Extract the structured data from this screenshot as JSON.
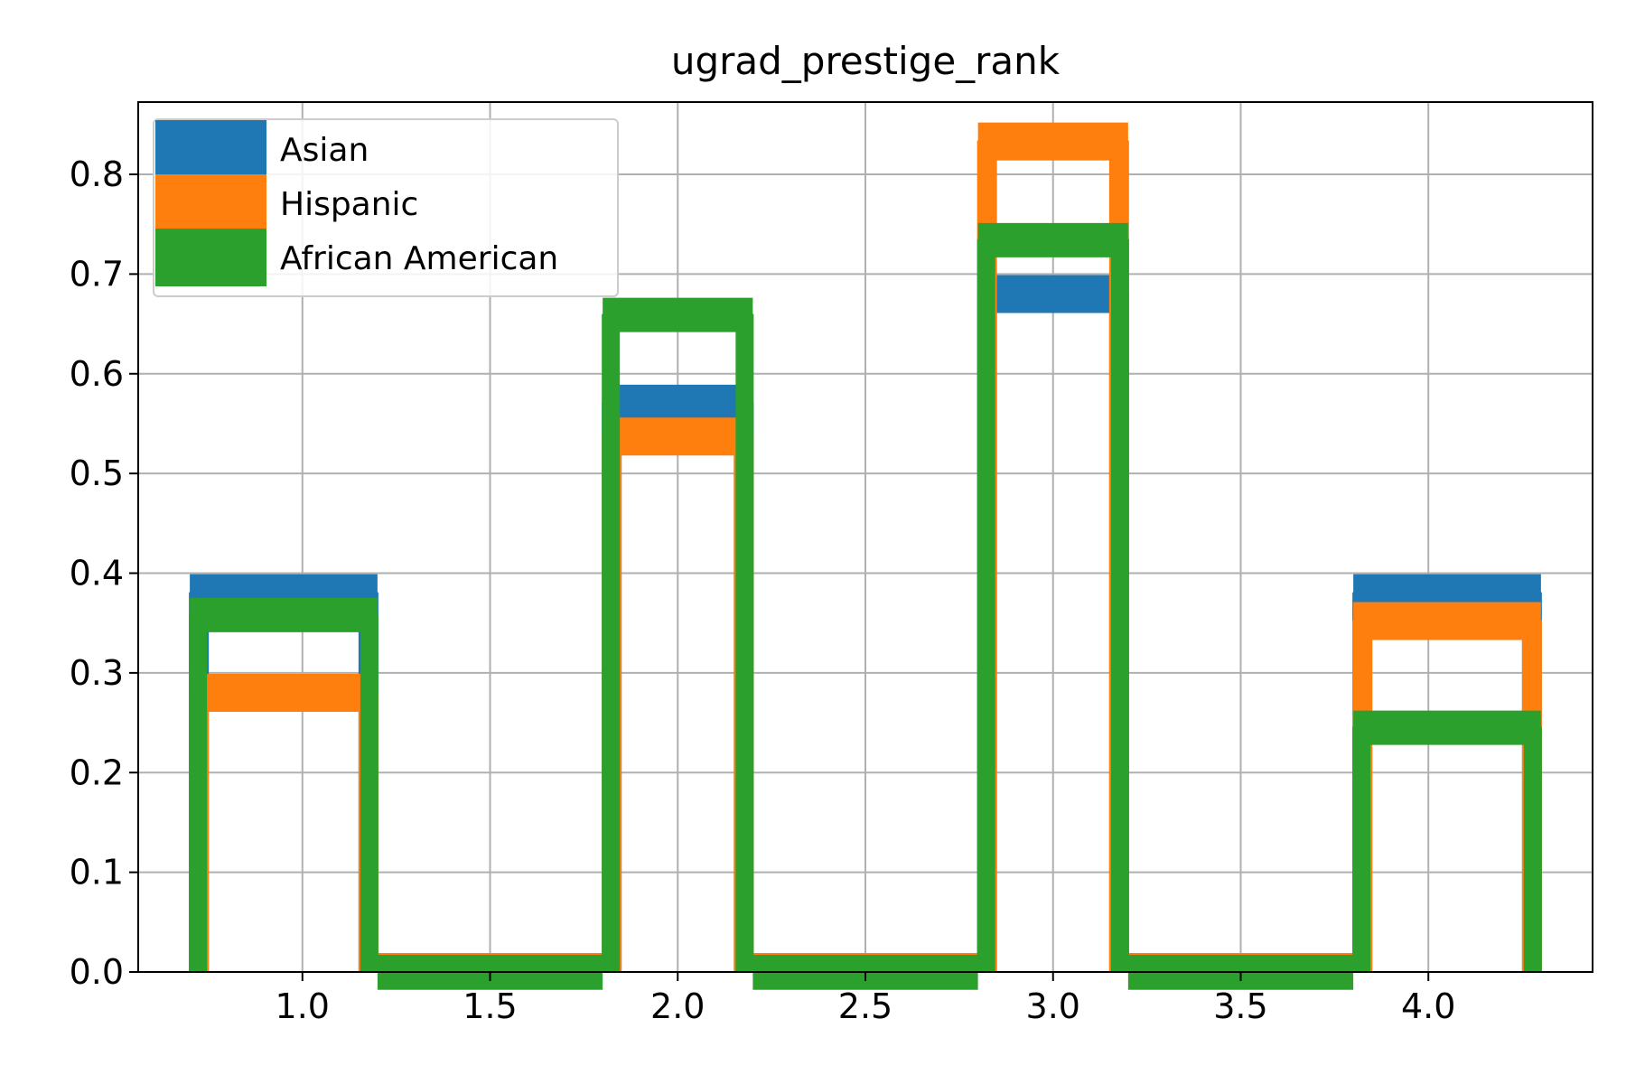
{
  "chart_data": {
    "type": "histogram-step",
    "title": "ugrad_prestige_rank",
    "xlabel": "",
    "ylabel": "",
    "xlim": [
      0.5625,
      4.4375
    ],
    "ylim": [
      0,
      0.8725
    ],
    "x_ticks": [
      1.0,
      1.5,
      2.0,
      2.5,
      3.0,
      3.5,
      4.0
    ],
    "x_tick_labels": [
      "1.0",
      "1.5",
      "2.0",
      "2.5",
      "3.0",
      "3.5",
      "4.0"
    ],
    "y_ticks": [
      0.0,
      0.1,
      0.2,
      0.3,
      0.4,
      0.5,
      0.6,
      0.7,
      0.8
    ],
    "y_tick_labels": [
      "0.0",
      "0.1",
      "0.2",
      "0.3",
      "0.4",
      "0.5",
      "0.6",
      "0.7",
      "0.8"
    ],
    "bin_edges": [
      0.7,
      1.2,
      1.8,
      2.2,
      2.8,
      3.2,
      3.8,
      4.3
    ],
    "grid": true,
    "legend_position": "upper-left",
    "series": [
      {
        "name": "Asian",
        "color": "#1f77b4",
        "values": [
          0.38,
          0.0,
          0.57,
          0.0,
          0.68,
          0.0,
          0.38
        ]
      },
      {
        "name": "Hispanic",
        "color": "#ff7f0e",
        "values": [
          0.28,
          0.0,
          0.537,
          0.0,
          0.833,
          0.0,
          0.352
        ]
      },
      {
        "name": "African American",
        "color": "#2ca02c",
        "values": [
          0.358,
          0.0,
          0.659,
          0.0,
          0.734,
          0.0,
          0.245
        ]
      }
    ]
  }
}
